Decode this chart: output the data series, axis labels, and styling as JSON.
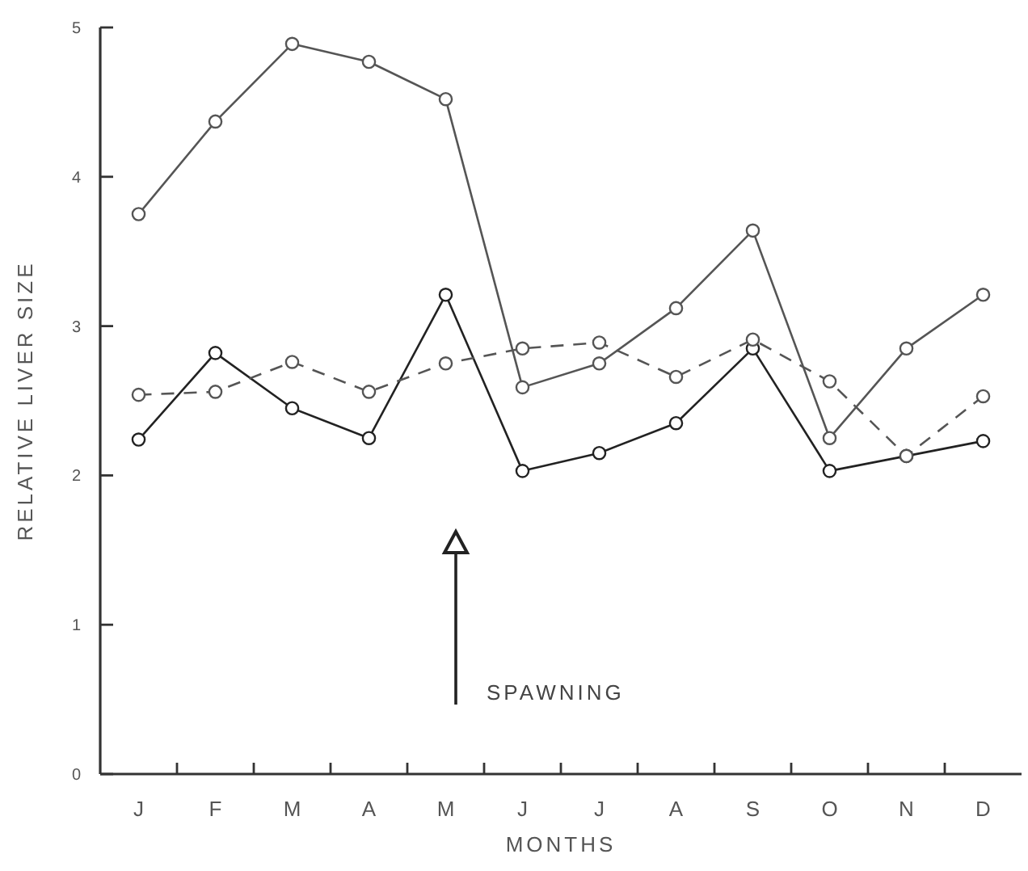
{
  "chart_data": {
    "type": "line",
    "xlabel": "MONTHS",
    "ylabel": "RELATIVE LIVER SIZE",
    "categories": [
      "J",
      "F",
      "M",
      "A",
      "M",
      "J",
      "J",
      "A",
      "S",
      "O",
      "N",
      "D"
    ],
    "ylim": [
      0,
      5
    ],
    "yticks": [
      0,
      1,
      2,
      3,
      4,
      5
    ],
    "grid": false,
    "marker": "circle",
    "series": [
      {
        "color": "#555555",
        "line_style": "solid",
        "values": [
          3.75,
          4.37,
          4.89,
          4.77,
          4.52,
          2.59,
          2.75,
          3.12,
          3.64,
          2.25,
          2.85,
          3.21
        ]
      },
      {
        "color": "#222222",
        "line_style": "solid",
        "values": [
          2.24,
          2.82,
          2.45,
          2.25,
          3.21,
          2.03,
          2.15,
          2.35,
          2.85,
          2.03,
          2.13,
          2.23
        ]
      },
      {
        "color": "#555555",
        "line_style": "dashed",
        "values": [
          2.54,
          2.56,
          2.76,
          2.56,
          2.75,
          2.85,
          2.89,
          2.66,
          2.91,
          2.63,
          2.13,
          2.53
        ]
      }
    ],
    "annotations": [
      "SPAWNING"
    ]
  }
}
